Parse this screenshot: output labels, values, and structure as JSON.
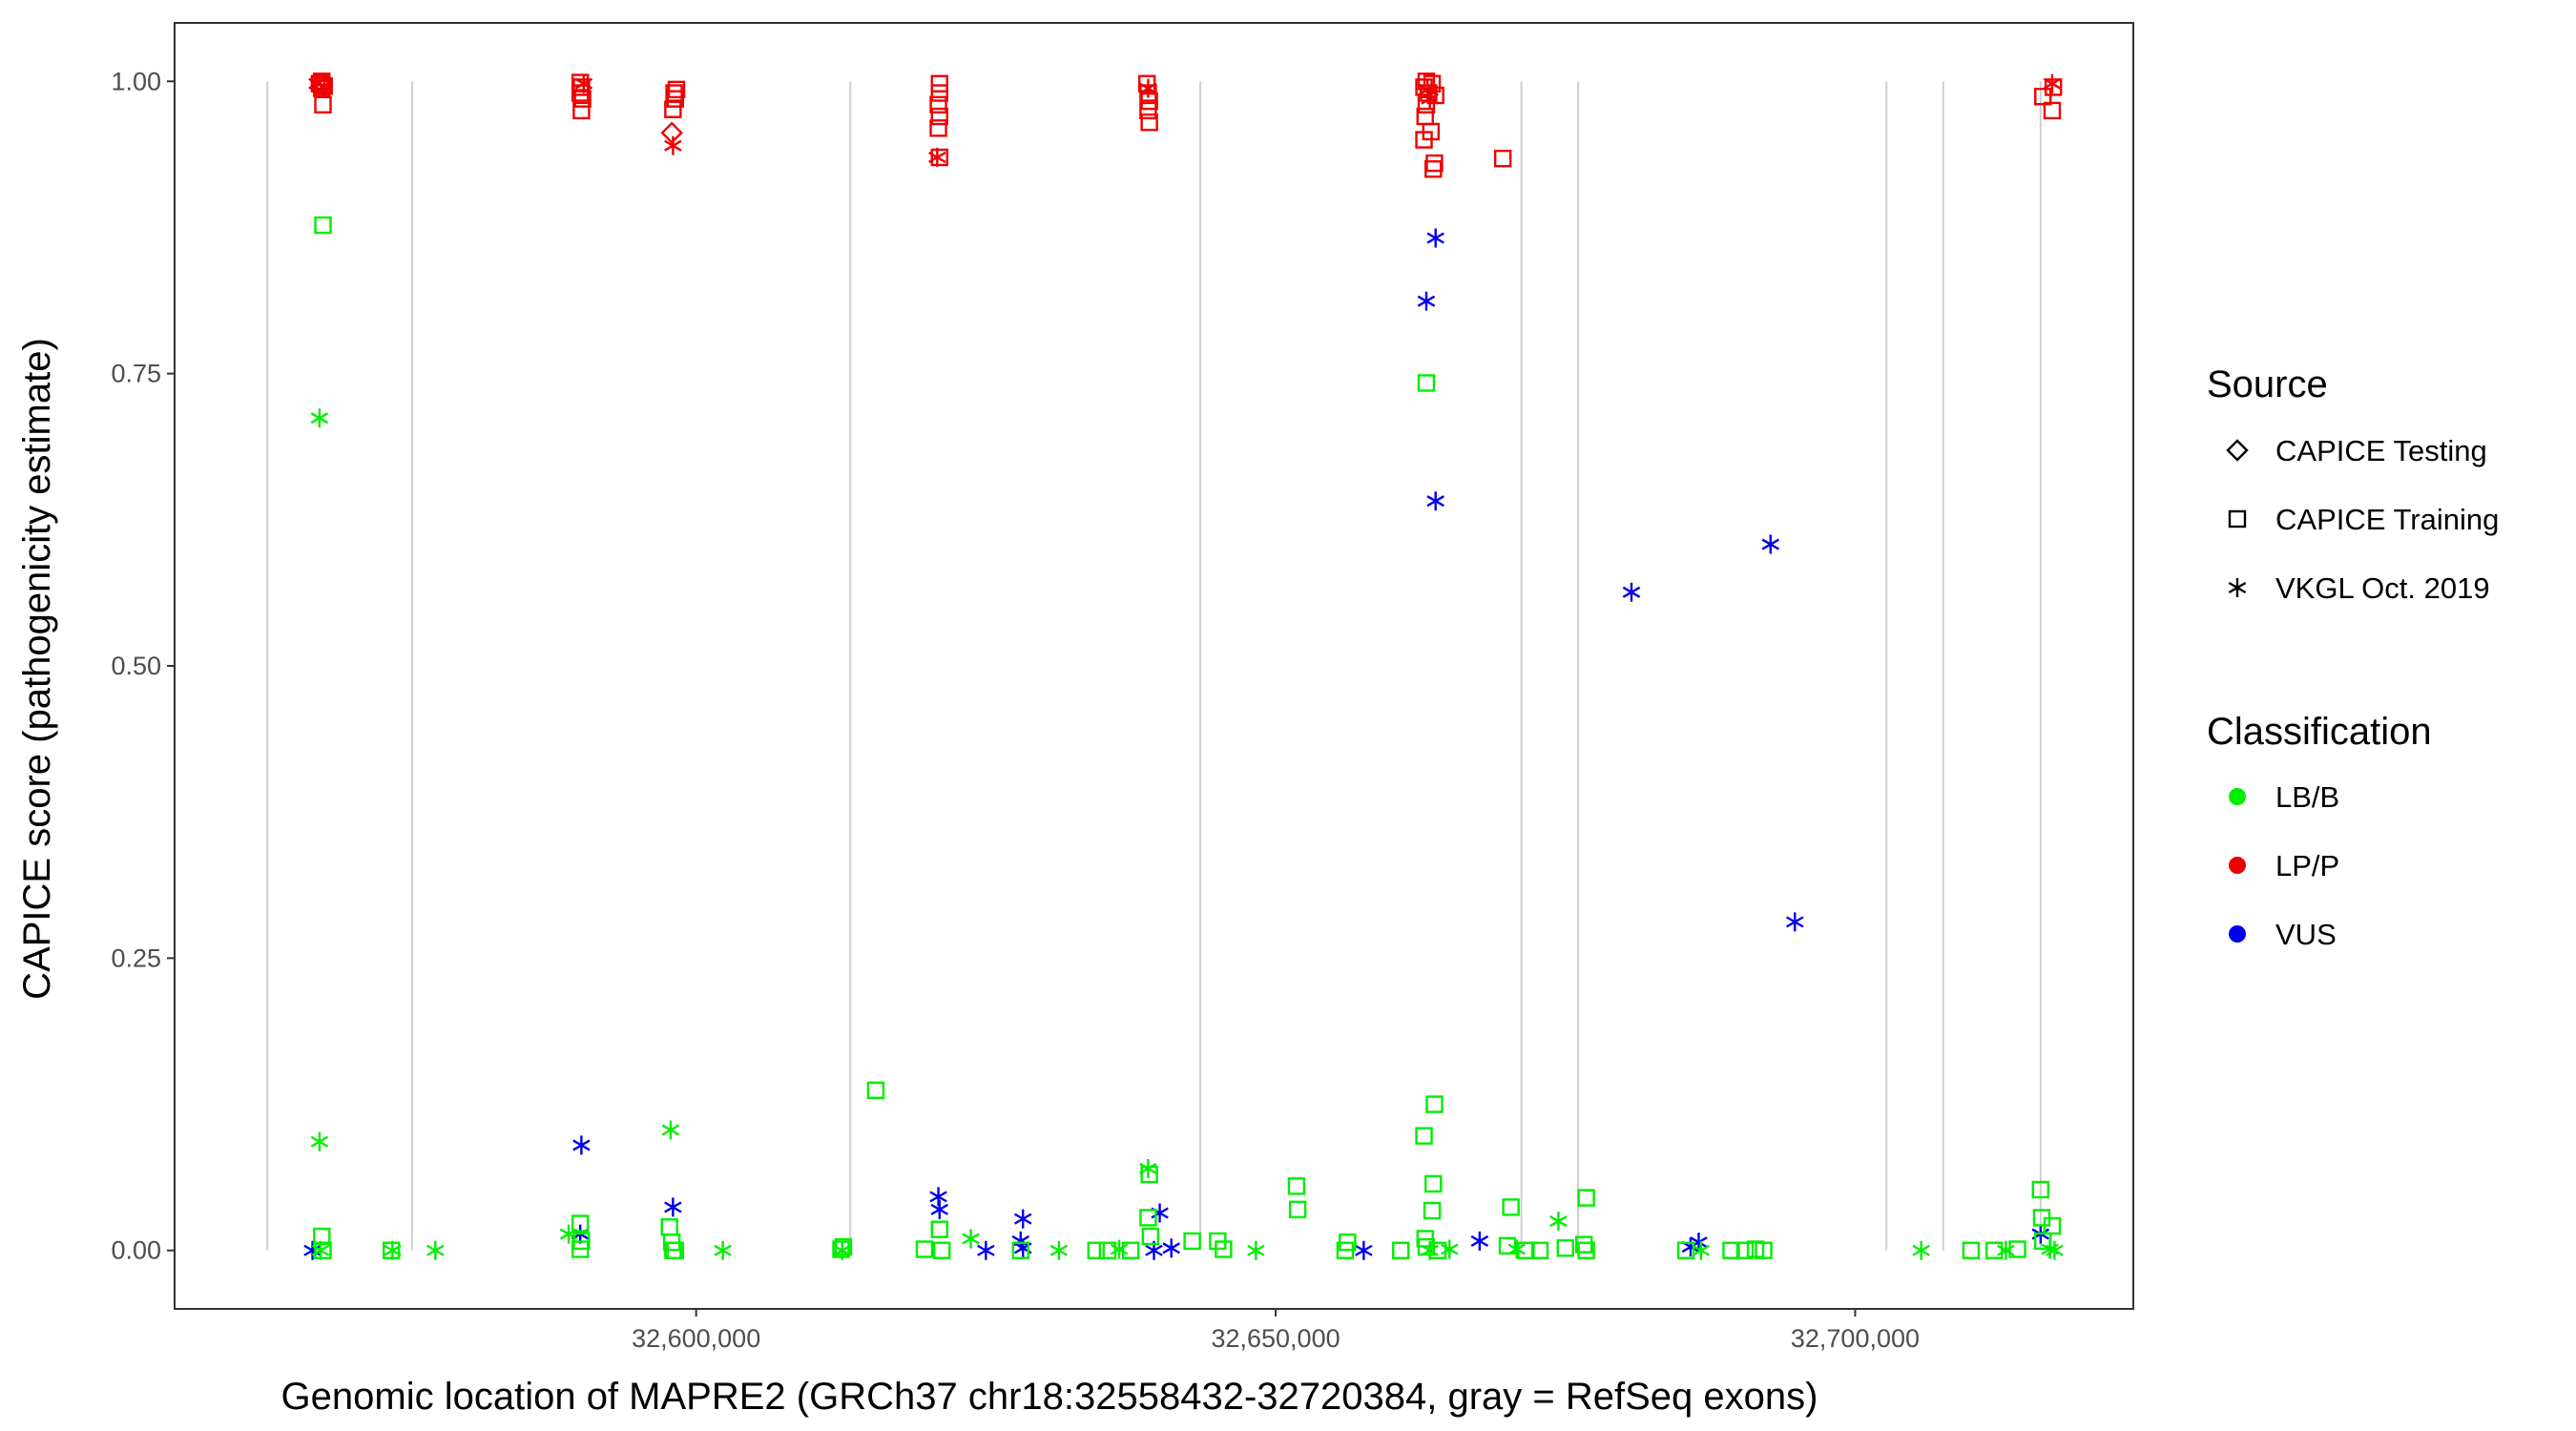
{
  "chart_data": {
    "type": "scatter",
    "xlabel": "Genomic location of MAPRE2 (GRCh37 chr18:32558432-32720384, gray = RefSeq exons)",
    "ylabel": "CAPICE score (pathogenicity estimate)",
    "xlim": [
      32555000,
      32724000
    ],
    "ylim": [
      -0.05,
      1.05
    ],
    "x_ticks": [
      32600000,
      32650000,
      32700000
    ],
    "x_tick_labels": [
      "32,600,000",
      "32,650,000",
      "32,700,000"
    ],
    "y_ticks": [
      0.0,
      0.25,
      0.5,
      0.75,
      1.0
    ],
    "y_tick_labels": [
      "0.00",
      "0.25",
      "0.50",
      "0.75",
      "1.00"
    ],
    "grid": false,
    "legend_position": "right",
    "exon_positions": [
      32563000,
      32575500,
      32613300,
      32643500,
      32671200,
      32676100,
      32702700,
      32707600,
      32716000
    ],
    "legend": {
      "source_title": "Source",
      "source_items": [
        {
          "label": "CAPICE Testing",
          "shape": "diamond"
        },
        {
          "label": "CAPICE Training",
          "shape": "square"
        },
        {
          "label": "VKGL Oct. 2019",
          "shape": "asterisk"
        }
      ],
      "classification_title": "Classification",
      "classification_items": [
        {
          "label": "LB/B",
          "color": "#00ee00"
        },
        {
          "label": "LP/P",
          "color": "#ee0000"
        },
        {
          "label": "VUS",
          "color": "#0000ee"
        }
      ]
    },
    "series": [
      {
        "name": "LP/P",
        "color": "#ee0000",
        "points": [
          {
            "x": 32567700,
            "y": 1.0,
            "s": "square"
          },
          {
            "x": 32567500,
            "y": 0.998,
            "s": "square"
          },
          {
            "x": 32567900,
            "y": 0.996,
            "s": "square"
          },
          {
            "x": 32567700,
            "y": 0.994,
            "s": "square"
          },
          {
            "x": 32567800,
            "y": 0.98,
            "s": "square"
          },
          {
            "x": 32567300,
            "y": 0.998,
            "s": "asterisk"
          },
          {
            "x": 32567900,
            "y": 0.996,
            "s": "asterisk"
          },
          {
            "x": 32590000,
            "y": 0.999,
            "s": "square"
          },
          {
            "x": 32590100,
            "y": 0.995,
            "s": "square"
          },
          {
            "x": 32590000,
            "y": 0.99,
            "s": "square"
          },
          {
            "x": 32590200,
            "y": 0.985,
            "s": "square"
          },
          {
            "x": 32590100,
            "y": 0.975,
            "s": "square"
          },
          {
            "x": 32590300,
            "y": 0.998,
            "s": "asterisk"
          },
          {
            "x": 32598300,
            "y": 0.993,
            "s": "square"
          },
          {
            "x": 32598100,
            "y": 0.99,
            "s": "square"
          },
          {
            "x": 32598200,
            "y": 0.985,
            "s": "square"
          },
          {
            "x": 32598000,
            "y": 0.976,
            "s": "square"
          },
          {
            "x": 32597900,
            "y": 0.956,
            "s": "diamond"
          },
          {
            "x": 32598000,
            "y": 0.945,
            "s": "asterisk"
          },
          {
            "x": 32621000,
            "y": 0.998,
            "s": "square"
          },
          {
            "x": 32621000,
            "y": 0.99,
            "s": "square"
          },
          {
            "x": 32620900,
            "y": 0.98,
            "s": "square"
          },
          {
            "x": 32621000,
            "y": 0.97,
            "s": "square"
          },
          {
            "x": 32620900,
            "y": 0.96,
            "s": "square"
          },
          {
            "x": 32621000,
            "y": 0.935,
            "s": "square"
          },
          {
            "x": 32620800,
            "y": 0.935,
            "s": "asterisk"
          },
          {
            "x": 32638900,
            "y": 0.998,
            "s": "square"
          },
          {
            "x": 32639000,
            "y": 0.99,
            "s": "square"
          },
          {
            "x": 32639100,
            "y": 0.983,
            "s": "square"
          },
          {
            "x": 32639000,
            "y": 0.975,
            "s": "square"
          },
          {
            "x": 32639100,
            "y": 0.965,
            "s": "square"
          },
          {
            "x": 32639000,
            "y": 0.994,
            "s": "asterisk"
          },
          {
            "x": 32663000,
            "y": 1.0,
            "s": "square"
          },
          {
            "x": 32663500,
            "y": 0.998,
            "s": "square"
          },
          {
            "x": 32662800,
            "y": 0.995,
            "s": "square"
          },
          {
            "x": 32663200,
            "y": 0.99,
            "s": "square"
          },
          {
            "x": 32663800,
            "y": 0.988,
            "s": "square"
          },
          {
            "x": 32663000,
            "y": 0.98,
            "s": "square"
          },
          {
            "x": 32662900,
            "y": 0.97,
            "s": "square"
          },
          {
            "x": 32663400,
            "y": 0.957,
            "s": "square"
          },
          {
            "x": 32662800,
            "y": 0.95,
            "s": "square"
          },
          {
            "x": 32663700,
            "y": 0.93,
            "s": "square"
          },
          {
            "x": 32663600,
            "y": 0.925,
            "s": "square"
          },
          {
            "x": 32663100,
            "y": 0.993,
            "s": "asterisk"
          },
          {
            "x": 32663300,
            "y": 0.985,
            "s": "asterisk"
          },
          {
            "x": 32669600,
            "y": 0.934,
            "s": "square"
          },
          {
            "x": 32716200,
            "y": 0.987,
            "s": "square"
          },
          {
            "x": 32717100,
            "y": 0.995,
            "s": "square"
          },
          {
            "x": 32717000,
            "y": 0.975,
            "s": "square"
          },
          {
            "x": 32717000,
            "y": 0.998,
            "s": "asterisk"
          }
        ]
      },
      {
        "name": "VUS",
        "color": "#0000ee",
        "points": [
          {
            "x": 32566900,
            "y": 0.0,
            "s": "asterisk"
          },
          {
            "x": 32590100,
            "y": 0.09,
            "s": "asterisk"
          },
          {
            "x": 32590000,
            "y": 0.014,
            "s": "asterisk"
          },
          {
            "x": 32598000,
            "y": 0.037,
            "s": "asterisk"
          },
          {
            "x": 32620900,
            "y": 0.046,
            "s": "asterisk"
          },
          {
            "x": 32621000,
            "y": 0.035,
            "s": "asterisk"
          },
          {
            "x": 32625000,
            "y": 0.0,
            "s": "asterisk"
          },
          {
            "x": 32628200,
            "y": 0.027,
            "s": "asterisk"
          },
          {
            "x": 32628000,
            "y": 0.008,
            "s": "asterisk"
          },
          {
            "x": 32628200,
            "y": 0.002,
            "s": "asterisk"
          },
          {
            "x": 32640000,
            "y": 0.032,
            "s": "asterisk"
          },
          {
            "x": 32639500,
            "y": 0.0,
            "s": "asterisk"
          },
          {
            "x": 32641000,
            "y": 0.002,
            "s": "asterisk"
          },
          {
            "x": 32657600,
            "y": 0.0,
            "s": "asterisk"
          },
          {
            "x": 32663000,
            "y": 0.812,
            "s": "asterisk"
          },
          {
            "x": 32663800,
            "y": 0.866,
            "s": "asterisk"
          },
          {
            "x": 32663800,
            "y": 0.641,
            "s": "asterisk"
          },
          {
            "x": 32667600,
            "y": 0.008,
            "s": "asterisk"
          },
          {
            "x": 32680700,
            "y": 0.563,
            "s": "asterisk"
          },
          {
            "x": 32685800,
            "y": 0.003,
            "s": "asterisk"
          },
          {
            "x": 32686500,
            "y": 0.007,
            "s": "asterisk"
          },
          {
            "x": 32692700,
            "y": 0.604,
            "s": "asterisk"
          },
          {
            "x": 32694800,
            "y": 0.281,
            "s": "asterisk"
          },
          {
            "x": 32716000,
            "y": 0.014,
            "s": "asterisk"
          }
        ]
      },
      {
        "name": "LB/B",
        "color": "#00ee00",
        "points": [
          {
            "x": 32567800,
            "y": 0.877,
            "s": "square"
          },
          {
            "x": 32567500,
            "y": 0.712,
            "s": "asterisk"
          },
          {
            "x": 32567500,
            "y": 0.093,
            "s": "asterisk"
          },
          {
            "x": 32567700,
            "y": 0.012,
            "s": "square"
          },
          {
            "x": 32567800,
            "y": 0.0,
            "s": "square"
          },
          {
            "x": 32567600,
            "y": 0.0,
            "s": "asterisk"
          },
          {
            "x": 32573700,
            "y": 0.0,
            "s": "square"
          },
          {
            "x": 32573800,
            "y": 0.0,
            "s": "asterisk"
          },
          {
            "x": 32577500,
            "y": 0.0,
            "s": "asterisk"
          },
          {
            "x": 32589000,
            "y": 0.014,
            "s": "asterisk"
          },
          {
            "x": 32590000,
            "y": 0.023,
            "s": "square"
          },
          {
            "x": 32590100,
            "y": 0.008,
            "s": "square"
          },
          {
            "x": 32590000,
            "y": 0.001,
            "s": "square"
          },
          {
            "x": 32597800,
            "y": 0.103,
            "s": "asterisk"
          },
          {
            "x": 32597700,
            "y": 0.02,
            "s": "square"
          },
          {
            "x": 32597900,
            "y": 0.007,
            "s": "square"
          },
          {
            "x": 32598000,
            "y": 0.0,
            "s": "square"
          },
          {
            "x": 32598200,
            "y": 0.0,
            "s": "square"
          },
          {
            "x": 32602300,
            "y": 0.0,
            "s": "asterisk"
          },
          {
            "x": 32612500,
            "y": 0.001,
            "s": "square"
          },
          {
            "x": 32612600,
            "y": 0.0,
            "s": "asterisk"
          },
          {
            "x": 32612700,
            "y": 0.003,
            "s": "square"
          },
          {
            "x": 32615500,
            "y": 0.137,
            "s": "square"
          },
          {
            "x": 32619700,
            "y": 0.001,
            "s": "square"
          },
          {
            "x": 32621000,
            "y": 0.018,
            "s": "square"
          },
          {
            "x": 32621200,
            "y": 0.0,
            "s": "square"
          },
          {
            "x": 32623700,
            "y": 0.01,
            "s": "asterisk"
          },
          {
            "x": 32628000,
            "y": 0.0,
            "s": "square"
          },
          {
            "x": 32631300,
            "y": 0.0,
            "s": "asterisk"
          },
          {
            "x": 32634500,
            "y": 0.0,
            "s": "square"
          },
          {
            "x": 32635500,
            "y": 0.0,
            "s": "square"
          },
          {
            "x": 32636500,
            "y": 0.001,
            "s": "asterisk"
          },
          {
            "x": 32637500,
            "y": 0.0,
            "s": "square"
          },
          {
            "x": 32639000,
            "y": 0.07,
            "s": "asterisk"
          },
          {
            "x": 32639100,
            "y": 0.065,
            "s": "square"
          },
          {
            "x": 32639000,
            "y": 0.028,
            "s": "square"
          },
          {
            "x": 32639200,
            "y": 0.012,
            "s": "square"
          },
          {
            "x": 32642800,
            "y": 0.008,
            "s": "square"
          },
          {
            "x": 32645000,
            "y": 0.008,
            "s": "square"
          },
          {
            "x": 32645500,
            "y": 0.001,
            "s": "square"
          },
          {
            "x": 32648300,
            "y": 0.0,
            "s": "asterisk"
          },
          {
            "x": 32651800,
            "y": 0.055,
            "s": "square"
          },
          {
            "x": 32651900,
            "y": 0.035,
            "s": "square"
          },
          {
            "x": 32656200,
            "y": 0.007,
            "s": "square"
          },
          {
            "x": 32656000,
            "y": 0.0,
            "s": "square"
          },
          {
            "x": 32660800,
            "y": 0.0,
            "s": "square"
          },
          {
            "x": 32663000,
            "y": 0.742,
            "s": "square"
          },
          {
            "x": 32662800,
            "y": 0.098,
            "s": "square"
          },
          {
            "x": 32663700,
            "y": 0.125,
            "s": "square"
          },
          {
            "x": 32663600,
            "y": 0.057,
            "s": "square"
          },
          {
            "x": 32663500,
            "y": 0.034,
            "s": "square"
          },
          {
            "x": 32662900,
            "y": 0.01,
            "s": "square"
          },
          {
            "x": 32663000,
            "y": 0.003,
            "s": "square"
          },
          {
            "x": 32663300,
            "y": 0.0,
            "s": "asterisk"
          },
          {
            "x": 32664000,
            "y": 0.0,
            "s": "square"
          },
          {
            "x": 32665000,
            "y": 0.001,
            "s": "asterisk"
          },
          {
            "x": 32670300,
            "y": 0.037,
            "s": "square"
          },
          {
            "x": 32670000,
            "y": 0.004,
            "s": "square"
          },
          {
            "x": 32670800,
            "y": 0.001,
            "s": "asterisk"
          },
          {
            "x": 32671600,
            "y": 0.0,
            "s": "square"
          },
          {
            "x": 32672800,
            "y": 0.0,
            "s": "square"
          },
          {
            "x": 32674400,
            "y": 0.025,
            "s": "asterisk"
          },
          {
            "x": 32675000,
            "y": 0.002,
            "s": "square"
          },
          {
            "x": 32676800,
            "y": 0.045,
            "s": "square"
          },
          {
            "x": 32676600,
            "y": 0.005,
            "s": "square"
          },
          {
            "x": 32676800,
            "y": 0.0,
            "s": "square"
          },
          {
            "x": 32685400,
            "y": 0.0,
            "s": "square"
          },
          {
            "x": 32686700,
            "y": 0.0,
            "s": "asterisk"
          },
          {
            "x": 32689300,
            "y": 0.0,
            "s": "square"
          },
          {
            "x": 32690500,
            "y": 0.0,
            "s": "square"
          },
          {
            "x": 32691400,
            "y": 0.001,
            "s": "square"
          },
          {
            "x": 32692100,
            "y": 0.0,
            "s": "square"
          },
          {
            "x": 32705700,
            "y": 0.0,
            "s": "asterisk"
          },
          {
            "x": 32710000,
            "y": 0.0,
            "s": "square"
          },
          {
            "x": 32712000,
            "y": 0.0,
            "s": "square"
          },
          {
            "x": 32713000,
            "y": 0.0,
            "s": "asterisk"
          },
          {
            "x": 32714000,
            "y": 0.001,
            "s": "square"
          },
          {
            "x": 32716000,
            "y": 0.052,
            "s": "square"
          },
          {
            "x": 32716100,
            "y": 0.028,
            "s": "square"
          },
          {
            "x": 32717000,
            "y": 0.021,
            "s": "square"
          },
          {
            "x": 32716200,
            "y": 0.008,
            "s": "square"
          },
          {
            "x": 32716800,
            "y": 0.001,
            "s": "asterisk"
          },
          {
            "x": 32717200,
            "y": 0.0,
            "s": "asterisk"
          }
        ]
      }
    ]
  }
}
